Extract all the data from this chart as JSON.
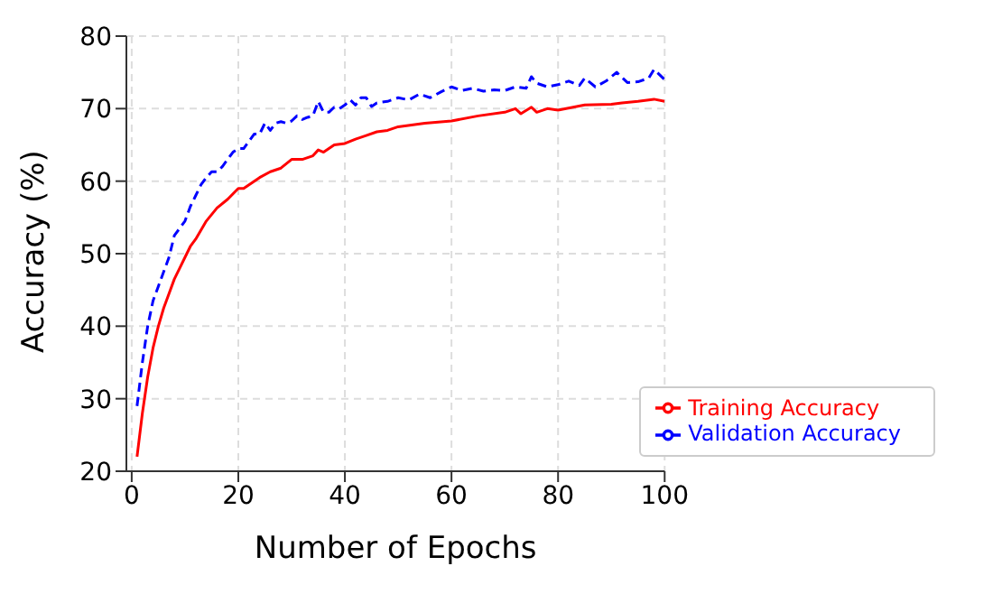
{
  "chart_data": {
    "type": "line",
    "xlabel": "Number of Epochs",
    "ylabel": "Accuracy (%)",
    "xlim": [
      -1,
      100
    ],
    "xticks": [
      0,
      20,
      40,
      60,
      80,
      100
    ],
    "ylim": [
      20,
      80
    ],
    "yticks": [
      20,
      30,
      40,
      50,
      60,
      70,
      80
    ],
    "grid": true,
    "legend": "bottom right",
    "marker": "none",
    "series": [
      {
        "name": "Training Accuracy",
        "color": "#ff0000",
        "line_style": "solid",
        "x": [
          1,
          2,
          3,
          4,
          5,
          6,
          7,
          8,
          9,
          10,
          11,
          12,
          14,
          16,
          18,
          20,
          21,
          22,
          24,
          26,
          28,
          30,
          32,
          34,
          35,
          36,
          38,
          40,
          42,
          44,
          46,
          48,
          50,
          55,
          60,
          65,
          70,
          72,
          73,
          75,
          76,
          78,
          80,
          85,
          90,
          92,
          95,
          98,
          100
        ],
        "values": [
          22,
          28,
          33,
          37,
          40,
          42.5,
          44.5,
          46.5,
          48,
          49.5,
          51,
          52,
          54.5,
          56.3,
          57.5,
          59,
          59,
          59.5,
          60.5,
          61.3,
          61.8,
          63,
          63,
          63.5,
          64.3,
          64,
          65,
          65.2,
          65.8,
          66.3,
          66.8,
          67,
          67.5,
          68,
          68.3,
          69,
          69.5,
          70,
          69.3,
          70.2,
          69.5,
          70,
          69.8,
          70.5,
          70.6,
          70.8,
          71,
          71.3,
          71
        ]
      },
      {
        "name": "Validation Accuracy",
        "color": "#0000ff",
        "line_style": "dashed",
        "x": [
          1,
          2,
          3,
          4,
          5,
          6,
          7,
          8,
          9,
          10,
          11,
          12,
          13,
          14,
          15,
          16,
          17,
          18,
          19,
          20,
          21,
          22,
          23,
          24,
          25,
          26,
          27,
          28,
          29,
          30,
          31,
          32,
          33,
          34,
          35,
          36,
          37,
          38,
          39,
          40,
          41,
          42,
          43,
          44,
          45,
          46,
          48,
          50,
          52,
          54,
          56,
          58,
          60,
          62,
          64,
          66,
          68,
          70,
          72,
          74,
          75,
          76,
          78,
          80,
          82,
          84,
          85,
          87,
          89,
          91,
          93,
          95,
          97,
          98,
          100
        ],
        "values": [
          29,
          35,
          40,
          43.5,
          45.5,
          47.5,
          49.5,
          52.5,
          53.5,
          54.5,
          56.5,
          58,
          59.5,
          60.5,
          61.3,
          61.3,
          62,
          63,
          64,
          64.5,
          64.5,
          65.5,
          66.5,
          66.5,
          68,
          67,
          68,
          68.2,
          68,
          68.3,
          69,
          68.5,
          68.8,
          69,
          71,
          69.5,
          69.5,
          70.2,
          70,
          70.5,
          71.2,
          70.5,
          71.5,
          71.5,
          70.3,
          70.8,
          71,
          71.5,
          71.2,
          72,
          71.5,
          72.3,
          73,
          72.5,
          72.8,
          72.4,
          72.6,
          72.5,
          73,
          72.8,
          74.4,
          73.5,
          73,
          73.3,
          73.8,
          73.2,
          74.2,
          73,
          73.8,
          75,
          73.6,
          73.7,
          74.2,
          75.4,
          74
        ]
      }
    ]
  }
}
